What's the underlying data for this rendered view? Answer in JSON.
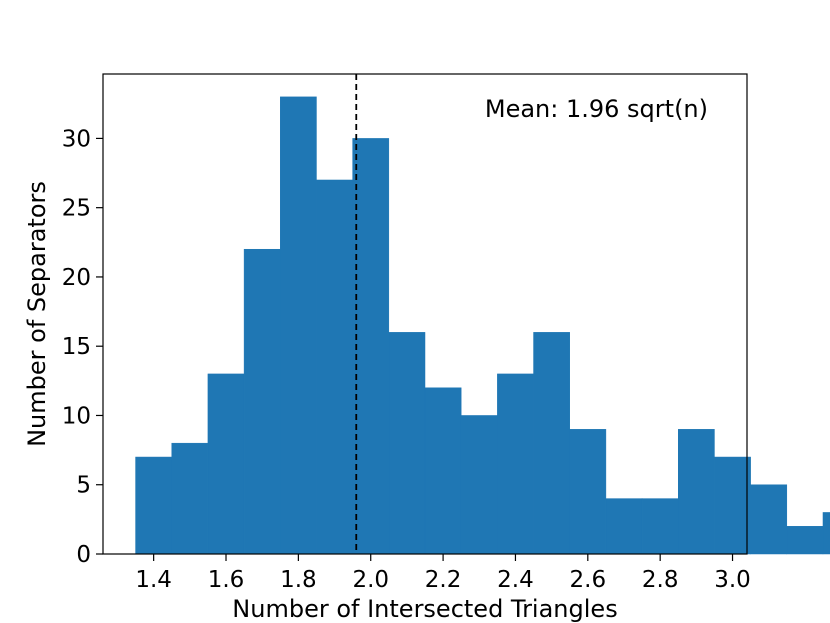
{
  "chart_data": {
    "type": "bar",
    "title": "",
    "xlabel": "Number of Intersected Triangles",
    "ylabel": "Number of Separators",
    "xlim": [
      1.26,
      3.04
    ],
    "ylim": [
      0,
      34.65
    ],
    "bin_start": 1.35,
    "bin_width": 0.1,
    "values": [
      7,
      8,
      13,
      22,
      33,
      27,
      30,
      16,
      12,
      10,
      13,
      16,
      9,
      4,
      4,
      9,
      7,
      5,
      2,
      3
    ],
    "mean_line": 1.96,
    "annotation": "Mean: 1.96 sqrt(n)",
    "x_ticks": [
      1.4,
      1.6,
      1.8,
      2.0,
      2.2,
      2.4,
      2.6,
      2.8,
      3.0
    ],
    "x_tick_labels": [
      "1.4",
      "1.6",
      "1.8",
      "2.0",
      "2.2",
      "2.4",
      "2.6",
      "2.8",
      "3.0"
    ],
    "y_ticks": [
      0,
      5,
      10,
      15,
      20,
      25,
      30
    ],
    "y_tick_labels": [
      "0",
      "5",
      "10",
      "15",
      "20",
      "25",
      "30"
    ],
    "bar_color": "#1f77b4",
    "mean_line_color": "#000000",
    "grid": false,
    "legend": "none"
  }
}
